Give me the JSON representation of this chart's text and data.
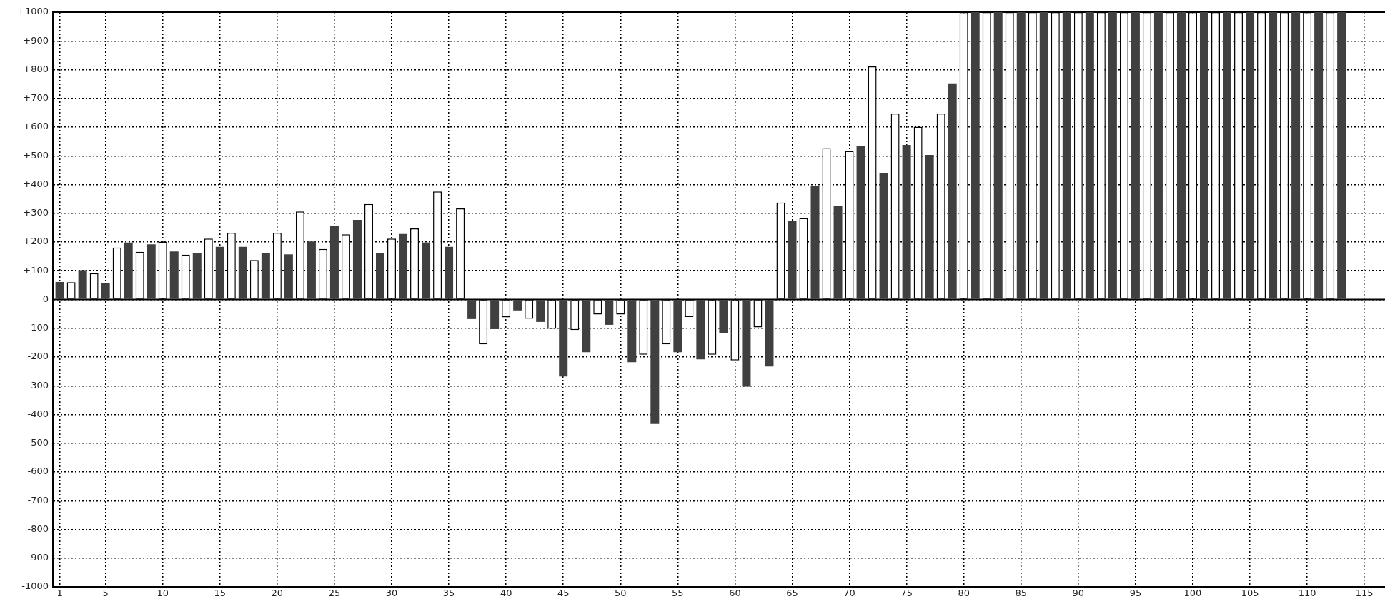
{
  "chart_data": {
    "type": "bar",
    "x": [
      1,
      2,
      3,
      4,
      5,
      6,
      7,
      8,
      9,
      10,
      11,
      12,
      13,
      14,
      15,
      16,
      17,
      18,
      19,
      20,
      21,
      22,
      23,
      24,
      25,
      26,
      27,
      28,
      29,
      30,
      31,
      32,
      33,
      34,
      35,
      36,
      37,
      38,
      39,
      40,
      41,
      42,
      43,
      44,
      45,
      46,
      47,
      48,
      49,
      50,
      51,
      52,
      53,
      54,
      55,
      56,
      57,
      58,
      59,
      60,
      61,
      62,
      63,
      64,
      65,
      66,
      67,
      68,
      69,
      70,
      71,
      72,
      73,
      74,
      75,
      76,
      77,
      78,
      79,
      80,
      81,
      82,
      83,
      84,
      85,
      86,
      87,
      88,
      89,
      90,
      91,
      92,
      93,
      94,
      95,
      96,
      97,
      98,
      99,
      100,
      101,
      102,
      103,
      104,
      105,
      106,
      107,
      108,
      109,
      110,
      111,
      112,
      113
    ],
    "values": [
      61,
      60,
      102,
      91,
      57,
      181,
      198,
      166,
      192,
      201,
      167,
      156,
      162,
      212,
      183,
      232,
      183,
      137,
      162,
      232,
      157,
      306,
      202,
      176,
      257,
      227,
      277,
      332,
      162,
      212,
      228,
      247,
      198,
      376,
      183,
      317,
      -68,
      -156,
      -103,
      -62,
      -38,
      -67,
      -78,
      -102,
      -268,
      -106,
      -183,
      -52,
      -88,
      -52,
      -218,
      -192,
      -433,
      -156,
      -183,
      -61,
      -208,
      -192,
      -118,
      -212,
      -303,
      -97,
      -233,
      337,
      274,
      283,
      394,
      527,
      324,
      517,
      533,
      811,
      439,
      647,
      538,
      601,
      503,
      647,
      752,
      1000,
      1000,
      1000,
      1000,
      1000,
      1000,
      1000,
      1000,
      1000,
      1000,
      1000,
      1000,
      1000,
      1000,
      1000,
      1000,
      1000,
      1000,
      1000,
      1000,
      1000,
      1000,
      1000,
      1000,
      1000,
      1000,
      1000,
      1000,
      1000,
      1000,
      1000,
      1000,
      1000,
      1000
    ],
    "colors": [
      "#404040",
      "#ffffff",
      "#404040",
      "#ffffff",
      "#404040",
      "#ffffff",
      "#404040",
      "#ffffff",
      "#404040",
      "#ffffff",
      "#404040",
      "#ffffff",
      "#404040",
      "#ffffff",
      "#404040",
      "#ffffff",
      "#404040",
      "#ffffff",
      "#404040",
      "#ffffff",
      "#404040",
      "#ffffff",
      "#404040",
      "#ffffff",
      "#404040",
      "#ffffff",
      "#404040",
      "#ffffff",
      "#404040",
      "#ffffff",
      "#404040",
      "#ffffff",
      "#404040",
      "#ffffff",
      "#404040",
      "#ffffff",
      "#404040",
      "#ffffff",
      "#404040",
      "#ffffff",
      "#404040",
      "#ffffff",
      "#404040",
      "#ffffff",
      "#404040",
      "#ffffff",
      "#404040",
      "#ffffff",
      "#404040",
      "#ffffff",
      "#404040",
      "#ffffff",
      "#404040",
      "#ffffff",
      "#404040",
      "#ffffff",
      "#404040",
      "#ffffff",
      "#404040",
      "#ffffff",
      "#404040",
      "#ffffff",
      "#404040",
      "#ffffff",
      "#404040",
      "#ffffff",
      "#404040",
      "#ffffff",
      "#404040",
      "#ffffff",
      "#404040",
      "#ffffff",
      "#404040",
      "#ffffff",
      "#404040",
      "#ffffff",
      "#404040",
      "#ffffff",
      "#404040",
      "#ffffff",
      "#404040",
      "#ffffff",
      "#404040",
      "#ffffff",
      "#404040",
      "#ffffff",
      "#404040",
      "#ffffff",
      "#404040",
      "#ffffff",
      "#404040",
      "#ffffff",
      "#404040",
      "#ffffff",
      "#404040",
      "#ffffff",
      "#404040",
      "#ffffff",
      "#404040",
      "#ffffff",
      "#404040",
      "#ffffff",
      "#404040",
      "#ffffff",
      "#404040",
      "#ffffff",
      "#404040",
      "#ffffff",
      "#404040",
      "#ffffff",
      "#404040",
      "#ffffff",
      "#404040"
    ],
    "xlim": [
      0.4,
      116.8
    ],
    "xticks": [
      1,
      5,
      10,
      15,
      20,
      25,
      30,
      35,
      40,
      45,
      50,
      55,
      60,
      65,
      70,
      75,
      80,
      85,
      90,
      95,
      100,
      105,
      110,
      115
    ],
    "ylim": [
      -1000,
      1000
    ],
    "yticks": [
      {
        "value": -1000,
        "label": "-1000"
      },
      {
        "value": -900,
        "label": "-900"
      },
      {
        "value": -800,
        "label": "-800"
      },
      {
        "value": -700,
        "label": "-700"
      },
      {
        "value": -600,
        "label": "-600"
      },
      {
        "value": -500,
        "label": "-500"
      },
      {
        "value": -400,
        "label": "-400"
      },
      {
        "value": -300,
        "label": "-300"
      },
      {
        "value": -200,
        "label": "-200"
      },
      {
        "value": -100,
        "label": "-100"
      },
      0,
      {
        "value": 100,
        "label": "+100"
      },
      {
        "value": 200,
        "label": "+200"
      },
      {
        "value": 300,
        "label": "+300"
      },
      {
        "value": 400,
        "label": "+400"
      },
      {
        "value": 500,
        "label": "+500"
      },
      {
        "value": 600,
        "label": "+600"
      },
      {
        "value": 700,
        "label": "+700"
      },
      {
        "value": 800,
        "label": "+800"
      },
      {
        "value": 900,
        "label": "+900"
      },
      {
        "value": 1000,
        "label": "+1000"
      }
    ],
    "grid": true,
    "legend": false
  }
}
